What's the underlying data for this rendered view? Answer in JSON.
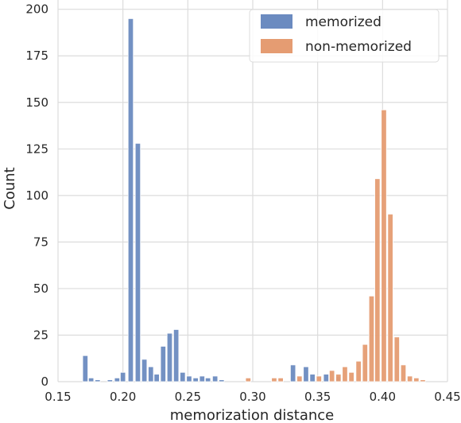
{
  "chart_data": {
    "type": "bar",
    "xlabel": "memorization distance",
    "ylabel": "Count",
    "xlim": [
      0.15,
      0.45
    ],
    "ylim": [
      0,
      205
    ],
    "xticks": [
      0.15,
      0.2,
      0.25,
      0.3,
      0.35,
      0.4,
      0.45
    ],
    "xtick_labels": [
      "0.15",
      "0.20",
      "0.25",
      "0.30",
      "0.35",
      "0.40",
      "0.45"
    ],
    "yticks": [
      0,
      25,
      50,
      75,
      100,
      125,
      150,
      175,
      200
    ],
    "ytick_labels": [
      "0",
      "25",
      "50",
      "75",
      "100",
      "125",
      "150",
      "175",
      "200"
    ],
    "grid": true,
    "legend_position": "top-right",
    "bin_width": 0.004,
    "series": [
      {
        "name": "memorized",
        "color": "#6b8bc0",
        "bins": [
          {
            "x": 0.171,
            "count": 14
          },
          {
            "x": 0.1755,
            "count": 2
          },
          {
            "x": 0.1805,
            "count": 1
          },
          {
            "x": 0.19,
            "count": 1
          },
          {
            "x": 0.1955,
            "count": 2
          },
          {
            "x": 0.2,
            "count": 5
          },
          {
            "x": 0.206,
            "count": 195
          },
          {
            "x": 0.2115,
            "count": 128
          },
          {
            "x": 0.2165,
            "count": 12
          },
          {
            "x": 0.2215,
            "count": 8
          },
          {
            "x": 0.226,
            "count": 4
          },
          {
            "x": 0.231,
            "count": 19
          },
          {
            "x": 0.236,
            "count": 26
          },
          {
            "x": 0.241,
            "count": 28
          },
          {
            "x": 0.246,
            "count": 5
          },
          {
            "x": 0.251,
            "count": 3
          },
          {
            "x": 0.256,
            "count": 2
          },
          {
            "x": 0.261,
            "count": 3
          },
          {
            "x": 0.2655,
            "count": 2
          },
          {
            "x": 0.271,
            "count": 3
          },
          {
            "x": 0.276,
            "count": 1
          },
          {
            "x": 0.3365,
            "count": 1
          },
          {
            "x": 0.331,
            "count": 9
          },
          {
            "x": 0.341,
            "count": 8
          },
          {
            "x": 0.346,
            "count": 4
          },
          {
            "x": 0.3565,
            "count": 4
          },
          {
            "x": 0.366,
            "count": 3
          }
        ]
      },
      {
        "name": "non-memorized",
        "color": "#e59c72",
        "bins": [
          {
            "x": 0.2965,
            "count": 2
          },
          {
            "x": 0.3165,
            "count": 2
          },
          {
            "x": 0.3215,
            "count": 2
          },
          {
            "x": 0.336,
            "count": 3
          },
          {
            "x": 0.351,
            "count": 3
          },
          {
            "x": 0.361,
            "count": 6
          },
          {
            "x": 0.366,
            "count": 4
          },
          {
            "x": 0.371,
            "count": 8
          },
          {
            "x": 0.376,
            "count": 5
          },
          {
            "x": 0.3815,
            "count": 11
          },
          {
            "x": 0.3865,
            "count": 20
          },
          {
            "x": 0.3915,
            "count": 46
          },
          {
            "x": 0.396,
            "count": 109
          },
          {
            "x": 0.401,
            "count": 146
          },
          {
            "x": 0.406,
            "count": 90
          },
          {
            "x": 0.411,
            "count": 24
          },
          {
            "x": 0.416,
            "count": 9
          },
          {
            "x": 0.421,
            "count": 3
          },
          {
            "x": 0.426,
            "count": 2
          },
          {
            "x": 0.431,
            "count": 1
          }
        ]
      }
    ]
  }
}
